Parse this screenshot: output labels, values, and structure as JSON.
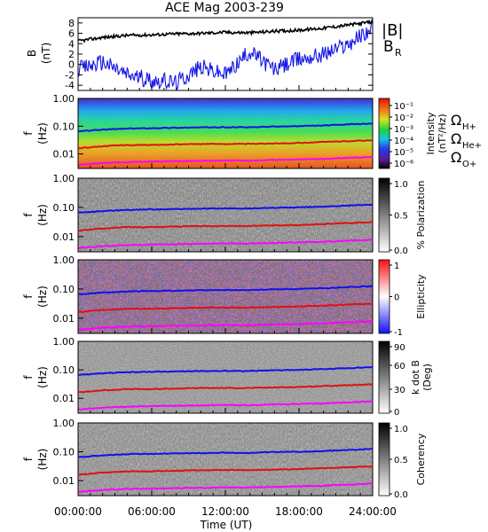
{
  "title": "ACE Mag 2003-239",
  "colors": {
    "btotal": "#000000",
    "br": "#1414e6",
    "h": "#1010f0",
    "he": "#e01010",
    "o": "#ff00ff"
  },
  "labels": {
    "b_ylabel": "B",
    "b_yunit": "(nT)",
    "legend_b": "|B|",
    "legend_br_main": "B",
    "legend_br_sub": "R",
    "f_label": "f",
    "f_unit": "(Hz)",
    "omega_h": "Ω",
    "omega_h_sub": "H+",
    "omega_he": "Ω",
    "omega_he_sub": "He+",
    "omega_o": "Ω",
    "omega_o_sub": "O+",
    "xaxis_title": "Time (UT)"
  },
  "chart_data": [
    {
      "type": "line",
      "panel": "B",
      "xlabel": "",
      "ylabel": "B (nT)",
      "ylim": [
        -5,
        9
      ],
      "yticks": [
        "-4",
        "-2",
        "0",
        "2",
        "4",
        "6",
        "8"
      ],
      "x": [
        0,
        2,
        4,
        6,
        8,
        10,
        12,
        14,
        16,
        18,
        20,
        22,
        24
      ],
      "series": [
        {
          "name": "|B|",
          "values": [
            4.5,
            5.2,
            5.6,
            5.7,
            5.9,
            6.0,
            6.2,
            6.1,
            6.4,
            6.6,
            7.0,
            7.6,
            8.2
          ]
        },
        {
          "name": "BR",
          "values": [
            -1.0,
            0.5,
            -2.0,
            -3.0,
            -3.5,
            -0.5,
            -2.0,
            2.5,
            -1.0,
            1.0,
            2.0,
            4.0,
            7.0
          ]
        }
      ]
    },
    {
      "type": "heatmap",
      "panel": "Intensity",
      "ylabel": "f (Hz)",
      "ylim": [
        0.003,
        1.0
      ],
      "yscale": "log",
      "yticks": [
        "0.01",
        "0.10",
        "1.00"
      ],
      "colorbar_label": "Intensity (nT²/Hz)",
      "colorbar_ticks": [
        "10⁻⁶",
        "10⁻⁵",
        "10⁻⁴",
        "10⁻³",
        "10⁻²",
        "10⁻¹"
      ],
      "colormap": "rainbow"
    },
    {
      "type": "heatmap",
      "panel": "Polarization",
      "ylabel": "f (Hz)",
      "ylim": [
        0.003,
        1.0
      ],
      "yscale": "log",
      "yticks": [
        "0.01",
        "0.10",
        "1.00"
      ],
      "colorbar_label": "% Polarization",
      "colorbar_ticks": [
        "0.0",
        "0.5",
        "1.0"
      ],
      "colormap": "grayscale"
    },
    {
      "type": "heatmap",
      "panel": "Ellipticity",
      "ylabel": "f (Hz)",
      "ylim": [
        0.003,
        1.0
      ],
      "yscale": "log",
      "yticks": [
        "0.01",
        "0.10",
        "1.00"
      ],
      "colorbar_label": "Ellipticity",
      "colorbar_ticks": [
        "-1",
        "0",
        "1"
      ],
      "colormap": "blue-white-red"
    },
    {
      "type": "heatmap",
      "panel": "k dot B",
      "ylabel": "f (Hz)",
      "ylim": [
        0.003,
        1.0
      ],
      "yscale": "log",
      "yticks": [
        "0.01",
        "0.10",
        "1.00"
      ],
      "colorbar_label": "k dot B (Deg)",
      "colorbar_ticks": [
        "0",
        "30",
        "60",
        "90"
      ],
      "colormap": "grayscale"
    },
    {
      "type": "heatmap",
      "panel": "Coherency",
      "ylabel": "f (Hz)",
      "xlabel": "Time (UT)",
      "ylim": [
        0.003,
        1.0
      ],
      "yscale": "log",
      "yticks": [
        "0.01",
        "0.10",
        "1.00"
      ],
      "xticks": [
        "00:00:00",
        "06:00:00",
        "12:00:00",
        "18:00:00",
        "24:00:00"
      ],
      "colorbar_label": "Coherency",
      "colorbar_ticks": [
        "0.0",
        "0.5",
        "1.0"
      ],
      "colormap": "grayscale"
    }
  ],
  "gyrofrequency_lines": {
    "x": [
      0,
      2,
      4,
      6,
      8,
      10,
      12,
      14,
      16,
      18,
      20,
      22,
      24
    ],
    "h_plus": [
      0.065,
      0.075,
      0.082,
      0.085,
      0.088,
      0.09,
      0.092,
      0.091,
      0.097,
      0.1,
      0.106,
      0.115,
      0.125
    ],
    "he_plus": [
      0.016,
      0.019,
      0.021,
      0.021,
      0.022,
      0.023,
      0.023,
      0.023,
      0.024,
      0.025,
      0.027,
      0.029,
      0.031
    ],
    "o_plus": [
      0.004,
      0.0047,
      0.0051,
      0.0053,
      0.0055,
      0.0056,
      0.0058,
      0.0057,
      0.0061,
      0.0063,
      0.0066,
      0.0072,
      0.0078
    ]
  }
}
